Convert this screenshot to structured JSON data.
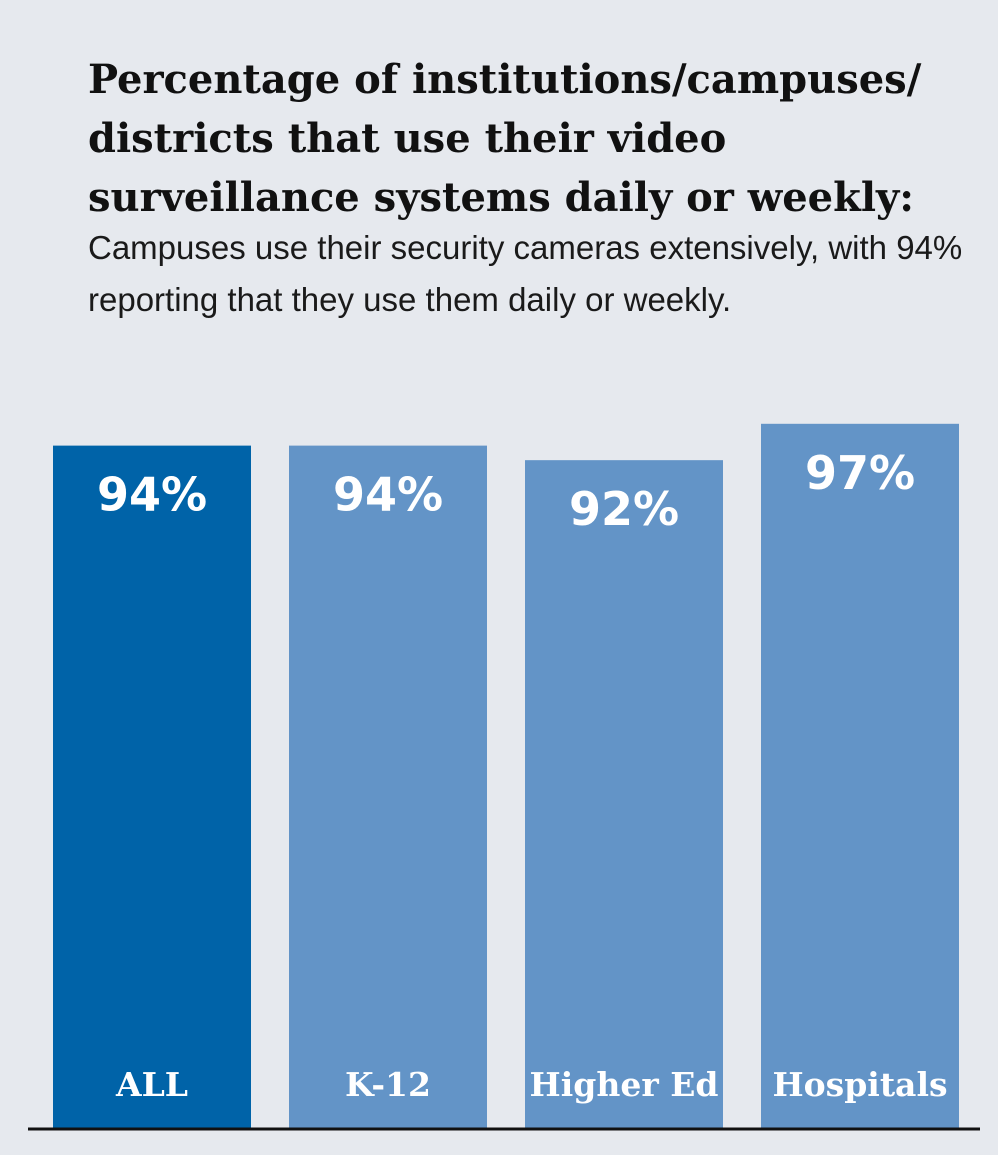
{
  "chart_data": {
    "type": "bar",
    "title": "Percentage of institutions/campuses/ districts that use their video surveillance systems daily or weekly:",
    "subtitle": "Campuses  use their security cameras extensively, with 94% reporting that they use them daily or weekly.",
    "categories": [
      "ALL",
      "K-12",
      "Higher Ed",
      "Hospitals"
    ],
    "values": [
      94,
      94,
      92,
      97
    ],
    "value_labels": [
      "94%",
      "94%",
      "92%",
      "97%"
    ],
    "xlabel": "",
    "ylabel": "",
    "ylim": [
      0,
      100
    ],
    "grid": false,
    "legend": "none",
    "colors": {
      "highlight": "#0063a8",
      "bar": "#6394c7",
      "baseline": "#111111",
      "background": "#e6e9ee"
    }
  }
}
